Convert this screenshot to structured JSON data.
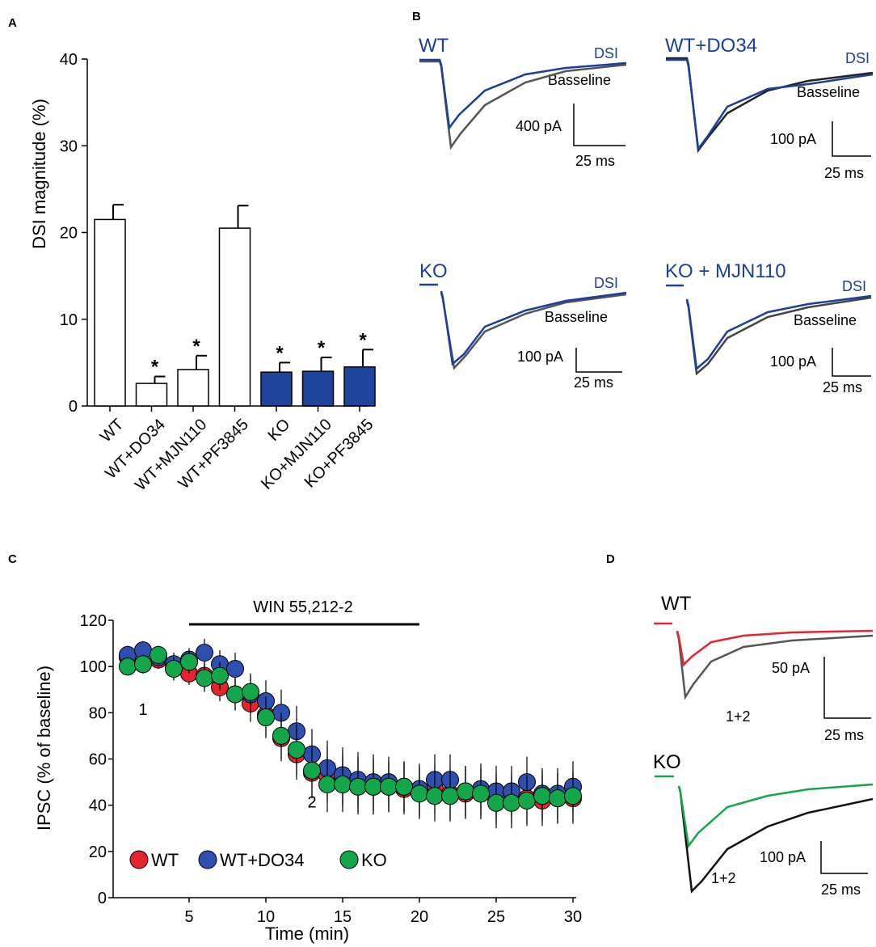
{
  "colors": {
    "white_bar": "#ffffff",
    "blue_bar": "#1f449c",
    "trace_blue": "#1a3f9c",
    "trace_gray": "#444444",
    "wt_red": "#e5242b",
    "do34_blue": "#2e4fb0",
    "ko_green": "#14a64a"
  },
  "panels": {
    "a": "A",
    "b": "B",
    "c": "C",
    "d": "D"
  },
  "chart_data": [
    {
      "panel": "A",
      "type": "bar",
      "ylabel": "DSI magnitude (%)",
      "ylim": [
        0,
        40
      ],
      "yticks": [
        0,
        10,
        20,
        30,
        40
      ],
      "categories": [
        "WT",
        "WT+DO34",
        "WT+MJN110",
        "WT+PF3845",
        "KO",
        "KO+MJN110",
        "KO+PF3845"
      ],
      "values": [
        21.5,
        2.6,
        4.2,
        20.5,
        3.9,
        4.0,
        4.5
      ],
      "errors": [
        1.7,
        0.8,
        1.6,
        2.6,
        1.1,
        1.6,
        2.0
      ],
      "fill": [
        "white",
        "white",
        "white",
        "white",
        "blue",
        "blue",
        "blue"
      ],
      "significance": [
        "",
        "*",
        "*",
        "",
        "*",
        "*",
        "*"
      ]
    },
    {
      "panel": "C",
      "type": "scatter",
      "xlabel": "Time (min)",
      "ylabel": "IPSC (% of baseline)",
      "xlim": [
        0,
        30
      ],
      "ylim": [
        0,
        120
      ],
      "xticks": [
        5,
        10,
        15,
        20,
        25,
        30
      ],
      "yticks": [
        0,
        20,
        40,
        60,
        80,
        100,
        120
      ],
      "drug_bar": {
        "label": "WIN 55,212-2",
        "start": 5,
        "end": 20
      },
      "point_labels": [
        {
          "text": "1",
          "x": 2,
          "y": 79
        },
        {
          "text": "2",
          "x": 13,
          "y": 39
        }
      ],
      "x": [
        1,
        2,
        3,
        4,
        5,
        6,
        7,
        8,
        9,
        10,
        11,
        12,
        13,
        14,
        15,
        16,
        17,
        18,
        19,
        20,
        21,
        22,
        23,
        24,
        25,
        26,
        27,
        28,
        29,
        30
      ],
      "series": [
        {
          "name": "WT",
          "color": "wt_red",
          "values": [
            104,
            101,
            103,
            99,
            97,
            96,
            91,
            88,
            84,
            79,
            69,
            62,
            54,
            53,
            51,
            49,
            48,
            48,
            47,
            46,
            47,
            45,
            45,
            45,
            43,
            43,
            43,
            42,
            43,
            43
          ],
          "errors": [
            4,
            4,
            4,
            5,
            5,
            6,
            6,
            7,
            8,
            9,
            10,
            11,
            11,
            12,
            12,
            12,
            12,
            11,
            11,
            11,
            11,
            11,
            11,
            11,
            11,
            11,
            11,
            11,
            11,
            11
          ]
        },
        {
          "name": "WT+DO34",
          "color": "do34_blue",
          "values": [
            105,
            107,
            104,
            101,
            103,
            106,
            101,
            99,
            88,
            85,
            80,
            72,
            62,
            56,
            53,
            51,
            50,
            50,
            48,
            47,
            51,
            51,
            46,
            47,
            46,
            46,
            50,
            45,
            45,
            48
          ],
          "errors": [
            4,
            4,
            4,
            5,
            5,
            6,
            6,
            7,
            8,
            9,
            10,
            11,
            11,
            12,
            12,
            12,
            12,
            11,
            11,
            11,
            11,
            11,
            11,
            11,
            11,
            11,
            11,
            11,
            11,
            11
          ]
        },
        {
          "name": "KO",
          "color": "ko_green",
          "values": [
            100,
            101,
            105,
            99,
            102,
            95,
            96,
            88,
            89,
            78,
            70,
            64,
            55,
            49,
            49,
            48,
            48,
            48,
            48,
            45,
            44,
            44,
            46,
            45,
            41,
            41,
            42,
            44,
            43,
            44
          ],
          "errors": [
            4,
            4,
            4,
            5,
            5,
            6,
            6,
            7,
            8,
            9,
            10,
            11,
            11,
            12,
            12,
            12,
            12,
            11,
            11,
            11,
            11,
            11,
            11,
            11,
            11,
            11,
            11,
            11,
            11,
            11
          ]
        }
      ],
      "legend": [
        "WT",
        "WT+DO34",
        "KO"
      ]
    }
  ],
  "traces_b": [
    {
      "title": "WT",
      "dsi_label": "DSI",
      "baseline_label": "Basseline",
      "scale_y": "400 pA",
      "scale_x": "25 ms"
    },
    {
      "title": "WT+DO34",
      "dsi_label": "DSI",
      "baseline_label": "Basseline",
      "scale_y": "100 pA",
      "scale_x": "25 ms"
    },
    {
      "title": "KO",
      "dsi_label": "DSI",
      "baseline_label": "Basseline",
      "scale_y": "100 pA",
      "scale_x": "25 ms"
    },
    {
      "title": "KO + MJN110",
      "dsi_label": "DSI",
      "baseline_label": "Basseline",
      "scale_y": "100 pA",
      "scale_x": "25 ms"
    }
  ],
  "traces_d": [
    {
      "title": "WT",
      "label": "1+2",
      "scale_y": "50 pA",
      "scale_x": "25 ms"
    },
    {
      "title": "KO",
      "label": "1+2",
      "scale_y": "100 pA",
      "scale_x": "25 ms"
    }
  ]
}
